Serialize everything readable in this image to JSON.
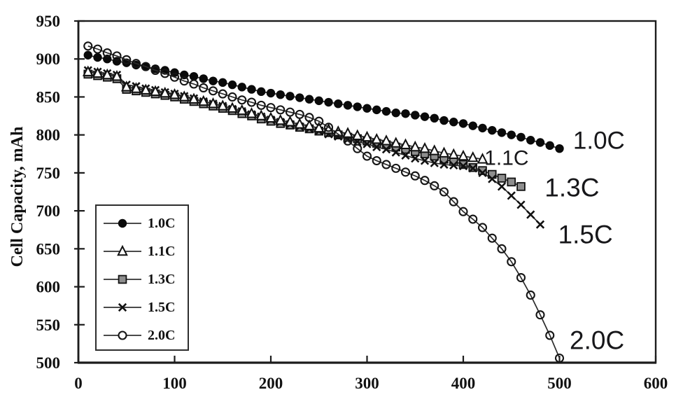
{
  "chart_data": {
    "type": "line",
    "title": "",
    "xlabel": "",
    "ylabel": "Cell Capacity, mAh",
    "xlim": [
      0,
      600
    ],
    "ylim": [
      500,
      950
    ],
    "xticks": [
      0,
      100,
      200,
      300,
      400,
      500,
      600
    ],
    "yticks": [
      500,
      550,
      600,
      650,
      700,
      750,
      800,
      850,
      900,
      950
    ],
    "grid": false,
    "legend_position": "lower-left-inside",
    "axis_color": "#1c1c1c",
    "line_color": "#2b2b2b",
    "series": [
      {
        "name": "1.0C",
        "marker": "filled-circle",
        "marker_fill": "#0a0a0a",
        "points": [
          [
            10,
            905
          ],
          [
            20,
            902
          ],
          [
            30,
            900
          ],
          [
            40,
            897
          ],
          [
            50,
            895
          ],
          [
            60,
            892
          ],
          [
            70,
            890
          ],
          [
            80,
            887
          ],
          [
            90,
            885
          ],
          [
            100,
            882
          ],
          [
            110,
            879
          ],
          [
            120,
            877
          ],
          [
            130,
            874
          ],
          [
            140,
            871
          ],
          [
            150,
            869
          ],
          [
            160,
            866
          ],
          [
            170,
            863
          ],
          [
            180,
            860
          ],
          [
            190,
            857
          ],
          [
            200,
            855
          ],
          [
            210,
            853
          ],
          [
            220,
            851
          ],
          [
            230,
            849
          ],
          [
            240,
            847
          ],
          [
            250,
            845
          ],
          [
            260,
            843
          ],
          [
            270,
            841
          ],
          [
            280,
            839
          ],
          [
            290,
            837
          ],
          [
            300,
            835
          ],
          [
            310,
            833
          ],
          [
            320,
            831
          ],
          [
            330,
            829
          ],
          [
            340,
            828
          ],
          [
            350,
            826
          ],
          [
            360,
            824
          ],
          [
            370,
            822
          ],
          [
            380,
            819
          ],
          [
            390,
            817
          ],
          [
            400,
            815
          ],
          [
            410,
            812
          ],
          [
            420,
            809
          ],
          [
            430,
            806
          ],
          [
            440,
            803
          ],
          [
            450,
            800
          ],
          [
            460,
            797
          ],
          [
            470,
            793
          ],
          [
            480,
            790
          ],
          [
            490,
            786
          ],
          [
            500,
            782
          ]
        ]
      },
      {
        "name": "1.1C",
        "marker": "open-triangle",
        "marker_fill": "#ffffff",
        "points": [
          [
            10,
            883
          ],
          [
            20,
            881
          ],
          [
            30,
            879
          ],
          [
            40,
            877
          ],
          [
            50,
            863
          ],
          [
            60,
            861
          ],
          [
            70,
            859
          ],
          [
            80,
            857
          ],
          [
            90,
            855
          ],
          [
            100,
            853
          ],
          [
            110,
            850
          ],
          [
            120,
            847
          ],
          [
            130,
            844
          ],
          [
            140,
            841
          ],
          [
            150,
            838
          ],
          [
            160,
            835
          ],
          [
            170,
            832
          ],
          [
            180,
            828
          ],
          [
            190,
            825
          ],
          [
            200,
            822
          ],
          [
            210,
            819
          ],
          [
            220,
            817
          ],
          [
            230,
            814
          ],
          [
            240,
            812
          ],
          [
            250,
            809
          ],
          [
            260,
            807
          ],
          [
            270,
            804
          ],
          [
            280,
            802
          ],
          [
            290,
            799
          ],
          [
            300,
            797
          ],
          [
            310,
            794
          ],
          [
            320,
            792
          ],
          [
            330,
            789
          ],
          [
            340,
            787
          ],
          [
            350,
            784
          ],
          [
            360,
            782
          ],
          [
            370,
            779
          ],
          [
            380,
            776
          ],
          [
            390,
            774
          ],
          [
            400,
            772
          ],
          [
            410,
            770
          ],
          [
            420,
            768
          ]
        ]
      },
      {
        "name": "1.3C",
        "marker": "gray-square",
        "marker_fill": "#8e8e8e",
        "points": [
          [
            10,
            880
          ],
          [
            20,
            878
          ],
          [
            30,
            876
          ],
          [
            40,
            874
          ],
          [
            50,
            860
          ],
          [
            60,
            858
          ],
          [
            70,
            856
          ],
          [
            80,
            854
          ],
          [
            90,
            852
          ],
          [
            100,
            850
          ],
          [
            110,
            847
          ],
          [
            120,
            844
          ],
          [
            130,
            841
          ],
          [
            140,
            838
          ],
          [
            150,
            835
          ],
          [
            160,
            832
          ],
          [
            170,
            828
          ],
          [
            180,
            825
          ],
          [
            190,
            821
          ],
          [
            200,
            818
          ],
          [
            210,
            815
          ],
          [
            220,
            813
          ],
          [
            230,
            810
          ],
          [
            240,
            808
          ],
          [
            250,
            805
          ],
          [
            260,
            803
          ],
          [
            270,
            800
          ],
          [
            280,
            797
          ],
          [
            290,
            795
          ],
          [
            300,
            792
          ],
          [
            310,
            789
          ],
          [
            320,
            787
          ],
          [
            330,
            784
          ],
          [
            340,
            781
          ],
          [
            350,
            778
          ],
          [
            360,
            775
          ],
          [
            370,
            772
          ],
          [
            380,
            768
          ],
          [
            390,
            765
          ],
          [
            400,
            761
          ],
          [
            410,
            757
          ],
          [
            420,
            753
          ],
          [
            430,
            748
          ],
          [
            440,
            743
          ],
          [
            450,
            738
          ],
          [
            460,
            732
          ]
        ]
      },
      {
        "name": "1.5C",
        "marker": "x-cross",
        "marker_fill": "#111111",
        "points": [
          [
            10,
            885
          ],
          [
            20,
            883
          ],
          [
            30,
            881
          ],
          [
            40,
            879
          ],
          [
            50,
            866
          ],
          [
            60,
            864
          ],
          [
            70,
            861
          ],
          [
            80,
            859
          ],
          [
            90,
            856
          ],
          [
            100,
            854
          ],
          [
            110,
            851
          ],
          [
            120,
            848
          ],
          [
            130,
            844
          ],
          [
            140,
            841
          ],
          [
            150,
            838
          ],
          [
            160,
            834
          ],
          [
            170,
            831
          ],
          [
            180,
            827
          ],
          [
            190,
            824
          ],
          [
            200,
            820
          ],
          [
            210,
            817
          ],
          [
            220,
            814
          ],
          [
            230,
            811
          ],
          [
            240,
            808
          ],
          [
            250,
            805
          ],
          [
            260,
            801
          ],
          [
            270,
            798
          ],
          [
            280,
            794
          ],
          [
            290,
            791
          ],
          [
            300,
            788
          ],
          [
            310,
            784
          ],
          [
            320,
            781
          ],
          [
            330,
            777
          ],
          [
            340,
            773
          ],
          [
            350,
            769
          ],
          [
            360,
            766
          ],
          [
            370,
            763
          ],
          [
            380,
            761
          ],
          [
            390,
            760
          ],
          [
            400,
            759
          ],
          [
            410,
            756
          ],
          [
            420,
            750
          ],
          [
            430,
            742
          ],
          [
            440,
            732
          ],
          [
            450,
            720
          ],
          [
            460,
            708
          ],
          [
            470,
            695
          ],
          [
            480,
            682
          ]
        ]
      },
      {
        "name": "2.0C",
        "marker": "open-circle",
        "marker_fill": "none",
        "points": [
          [
            10,
            917
          ],
          [
            20,
            913
          ],
          [
            30,
            908
          ],
          [
            40,
            904
          ],
          [
            50,
            899
          ],
          [
            60,
            894
          ],
          [
            70,
            890
          ],
          [
            80,
            885
          ],
          [
            90,
            881
          ],
          [
            100,
            876
          ],
          [
            110,
            871
          ],
          [
            120,
            867
          ],
          [
            130,
            862
          ],
          [
            140,
            858
          ],
          [
            150,
            854
          ],
          [
            160,
            850
          ],
          [
            170,
            846
          ],
          [
            180,
            843
          ],
          [
            190,
            839
          ],
          [
            200,
            836
          ],
          [
            210,
            833
          ],
          [
            220,
            830
          ],
          [
            230,
            827
          ],
          [
            240,
            823
          ],
          [
            250,
            818
          ],
          [
            260,
            810
          ],
          [
            270,
            801
          ],
          [
            280,
            792
          ],
          [
            290,
            782
          ],
          [
            300,
            772
          ],
          [
            310,
            766
          ],
          [
            320,
            761
          ],
          [
            330,
            756
          ],
          [
            340,
            751
          ],
          [
            350,
            746
          ],
          [
            360,
            740
          ],
          [
            370,
            733
          ],
          [
            380,
            725
          ],
          [
            390,
            712
          ],
          [
            400,
            699
          ],
          [
            410,
            689
          ],
          [
            420,
            678
          ],
          [
            430,
            664
          ],
          [
            440,
            650
          ],
          [
            450,
            633
          ],
          [
            460,
            612
          ],
          [
            470,
            589
          ],
          [
            480,
            563
          ],
          [
            490,
            536
          ],
          [
            500,
            506
          ]
        ]
      }
    ],
    "annotations": [
      {
        "text": "1.0C",
        "x": 541,
        "y": 793,
        "size": 35
      },
      {
        "text": "1.1C",
        "x": 445,
        "y": 770,
        "size": 30
      },
      {
        "text": "1.3C",
        "x": 513,
        "y": 731,
        "size": 37
      },
      {
        "text": "1.5C",
        "x": 527,
        "y": 669,
        "size": 37
      },
      {
        "text": "2.0C",
        "x": 539,
        "y": 530,
        "size": 37
      }
    ]
  }
}
